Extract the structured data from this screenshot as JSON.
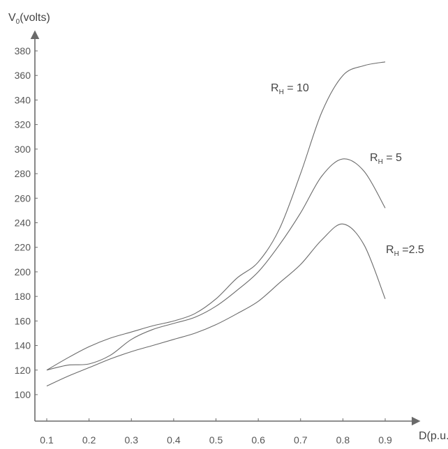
{
  "chart_data": {
    "type": "line",
    "xlabel": {
      "main": "D(p.u.)"
    },
    "ylabel": {
      "main": "V",
      "sub": "0",
      "suffix": "(volts)"
    },
    "x_ticks": [
      "0.1",
      "0.2",
      "0.3",
      "0.4",
      "0.5",
      "0.6",
      "0.7",
      "0.8",
      "0.9"
    ],
    "y_ticks": [
      "100",
      "120",
      "140",
      "160",
      "180",
      "200",
      "220",
      "240",
      "260",
      "280",
      "300",
      "320",
      "340",
      "360",
      "380"
    ],
    "xlim": [
      0.1,
      0.9
    ],
    "ylim": [
      100,
      380
    ],
    "grid": false,
    "series": [
      {
        "label": {
          "main": "R",
          "sub": "H",
          "rest": " = 10"
        },
        "x": [
          0.1,
          0.15,
          0.2,
          0.25,
          0.3,
          0.35,
          0.4,
          0.45,
          0.5,
          0.55,
          0.6,
          0.65,
          0.7,
          0.75,
          0.8,
          0.85,
          0.9
        ],
        "y": [
          120,
          130,
          139,
          146,
          151,
          156,
          160,
          166,
          178,
          195,
          208,
          235,
          280,
          330,
          360,
          368,
          371
        ]
      },
      {
        "label": {
          "main": "R",
          "sub": "H",
          "rest": " = 5"
        },
        "x": [
          0.1,
          0.15,
          0.2,
          0.25,
          0.3,
          0.35,
          0.4,
          0.45,
          0.5,
          0.55,
          0.6,
          0.65,
          0.7,
          0.75,
          0.8,
          0.85,
          0.9
        ],
        "y": [
          120,
          124,
          125,
          132,
          145,
          153,
          158,
          163,
          172,
          185,
          200,
          222,
          248,
          278,
          292,
          282,
          252
        ]
      },
      {
        "label": {
          "main": "R",
          "sub": "H",
          "rest": " =2.5"
        },
        "x": [
          0.1,
          0.15,
          0.2,
          0.25,
          0.3,
          0.35,
          0.4,
          0.45,
          0.5,
          0.55,
          0.6,
          0.65,
          0.7,
          0.75,
          0.8,
          0.85,
          0.9
        ],
        "y": [
          107,
          115,
          122,
          129,
          135,
          140,
          145,
          150,
          157,
          166,
          176,
          191,
          206,
          226,
          239,
          222,
          178
        ]
      }
    ]
  }
}
